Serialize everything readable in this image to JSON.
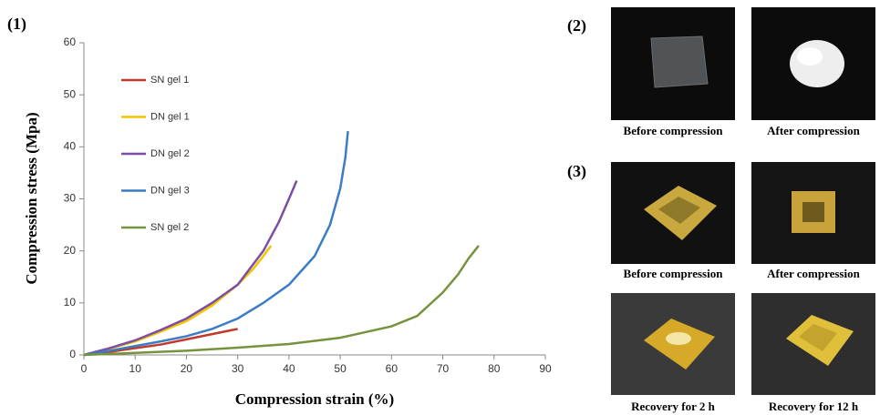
{
  "chart_data": {
    "type": "line",
    "xlabel": "Compression strain (%)",
    "ylabel": "Compression stress (Mpa)",
    "xlim": [
      0,
      90
    ],
    "xticks": [
      0,
      10,
      20,
      30,
      40,
      50,
      60,
      70,
      80,
      90
    ],
    "ylim": [
      0,
      60
    ],
    "yticks": [
      0,
      10,
      20,
      30,
      40,
      50,
      60
    ],
    "grid": false,
    "legend": "upper-left",
    "series": [
      {
        "name": "SN gel 1",
        "color": "#c0392b",
        "x": [
          0,
          5,
          10,
          15,
          20,
          25,
          30
        ],
        "values": [
          0,
          0.6,
          1.3,
          2,
          3,
          4,
          5
        ]
      },
      {
        "name": "DN gel 1",
        "color": "#f5c400",
        "x": [
          0,
          5,
          10,
          15,
          20,
          25,
          30,
          33,
          35,
          36.5
        ],
        "values": [
          0,
          1.2,
          2.6,
          4.5,
          6.5,
          9.5,
          13.5,
          16.5,
          19,
          21
        ]
      },
      {
        "name": "DN gel 2",
        "color": "#7b4ea3",
        "x": [
          0,
          5,
          10,
          15,
          20,
          25,
          30,
          35,
          38,
          40,
          41.5
        ],
        "values": [
          0,
          1.3,
          2.8,
          4.8,
          7,
          10,
          13.5,
          20,
          25.5,
          30,
          33.5
        ]
      },
      {
        "name": "DN gel 3",
        "color": "#3c7cc4",
        "x": [
          0,
          5,
          10,
          15,
          20,
          25,
          30,
          35,
          40,
          45,
          48,
          50,
          51,
          51.5
        ],
        "values": [
          0,
          0.8,
          1.7,
          2.6,
          3.6,
          5,
          7,
          10,
          13.5,
          19,
          25,
          32,
          38,
          43
        ]
      },
      {
        "name": "SN gel 2",
        "color": "#76923c",
        "x": [
          0,
          10,
          20,
          30,
          40,
          50,
          60,
          65,
          70,
          73,
          75,
          77
        ],
        "values": [
          0,
          0.4,
          0.8,
          1.4,
          2.1,
          3.3,
          5.5,
          7.5,
          12,
          15.5,
          18.5,
          21
        ]
      }
    ]
  },
  "panels": [
    "(1)",
    "(2)",
    "(3)"
  ],
  "photos": [
    {
      "caption": "Before compression"
    },
    {
      "caption": "After compression"
    },
    {
      "caption": "Before compression"
    },
    {
      "caption": "After compression"
    },
    {
      "caption": "Recovery for 2 h"
    },
    {
      "caption": "Recovery for 12 h"
    }
  ]
}
